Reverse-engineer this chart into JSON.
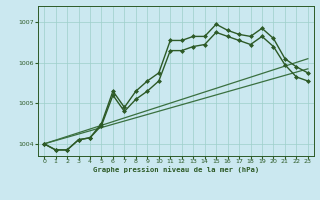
{
  "title": "Graphe pression niveau de la mer (hPa)",
  "background_color": "#cbe8f0",
  "grid_color": "#9ecfca",
  "line_color": "#2d5a27",
  "ylim": [
    1003.7,
    1007.4
  ],
  "yticks": [
    1004,
    1005,
    1006,
    1007
  ],
  "xlim": [
    -0.5,
    23.5
  ],
  "xticks": [
    0,
    1,
    2,
    3,
    4,
    5,
    6,
    7,
    8,
    9,
    10,
    11,
    12,
    13,
    14,
    15,
    16,
    17,
    18,
    19,
    20,
    21,
    22,
    23
  ],
  "series": [
    {
      "x": [
        0,
        1,
        2,
        3,
        4,
        5,
        6,
        7,
        8,
        9,
        10,
        11,
        12,
        13,
        14,
        15,
        16,
        17,
        18,
        19,
        20,
        21,
        22,
        23
      ],
      "y": [
        1004.0,
        1003.85,
        1003.85,
        1004.1,
        1004.15,
        1004.5,
        1005.3,
        1004.9,
        1005.3,
        1005.55,
        1005.75,
        1006.55,
        1006.55,
        1006.65,
        1006.65,
        1006.95,
        1006.8,
        1006.7,
        1006.65,
        1006.85,
        1006.6,
        1006.1,
        1005.9,
        1005.75
      ],
      "color": "#2d5a27",
      "lw": 1.0,
      "marker": "D",
      "markersize": 2.0
    },
    {
      "x": [
        0,
        1,
        2,
        3,
        4,
        5,
        6,
        7,
        8,
        9,
        10,
        11,
        12,
        13,
        14,
        15,
        16,
        17,
        18,
        19,
        20,
        21,
        22,
        23
      ],
      "y": [
        1004.0,
        1003.85,
        1003.85,
        1004.1,
        1004.15,
        1004.45,
        1005.2,
        1004.8,
        1005.1,
        1005.3,
        1005.55,
        1006.3,
        1006.3,
        1006.4,
        1006.45,
        1006.75,
        1006.65,
        1006.55,
        1006.45,
        1006.65,
        1006.4,
        1005.95,
        1005.65,
        1005.55
      ],
      "color": "#2d5a27",
      "lw": 1.0,
      "marker": "D",
      "markersize": 2.0
    },
    {
      "x": [
        0,
        23
      ],
      "y": [
        1004.0,
        1005.85
      ],
      "color": "#3a7040",
      "lw": 0.9,
      "marker": null,
      "markersize": 0
    },
    {
      "x": [
        0,
        23
      ],
      "y": [
        1004.0,
        1006.1
      ],
      "color": "#3a7040",
      "lw": 0.9,
      "marker": null,
      "markersize": 0
    }
  ]
}
